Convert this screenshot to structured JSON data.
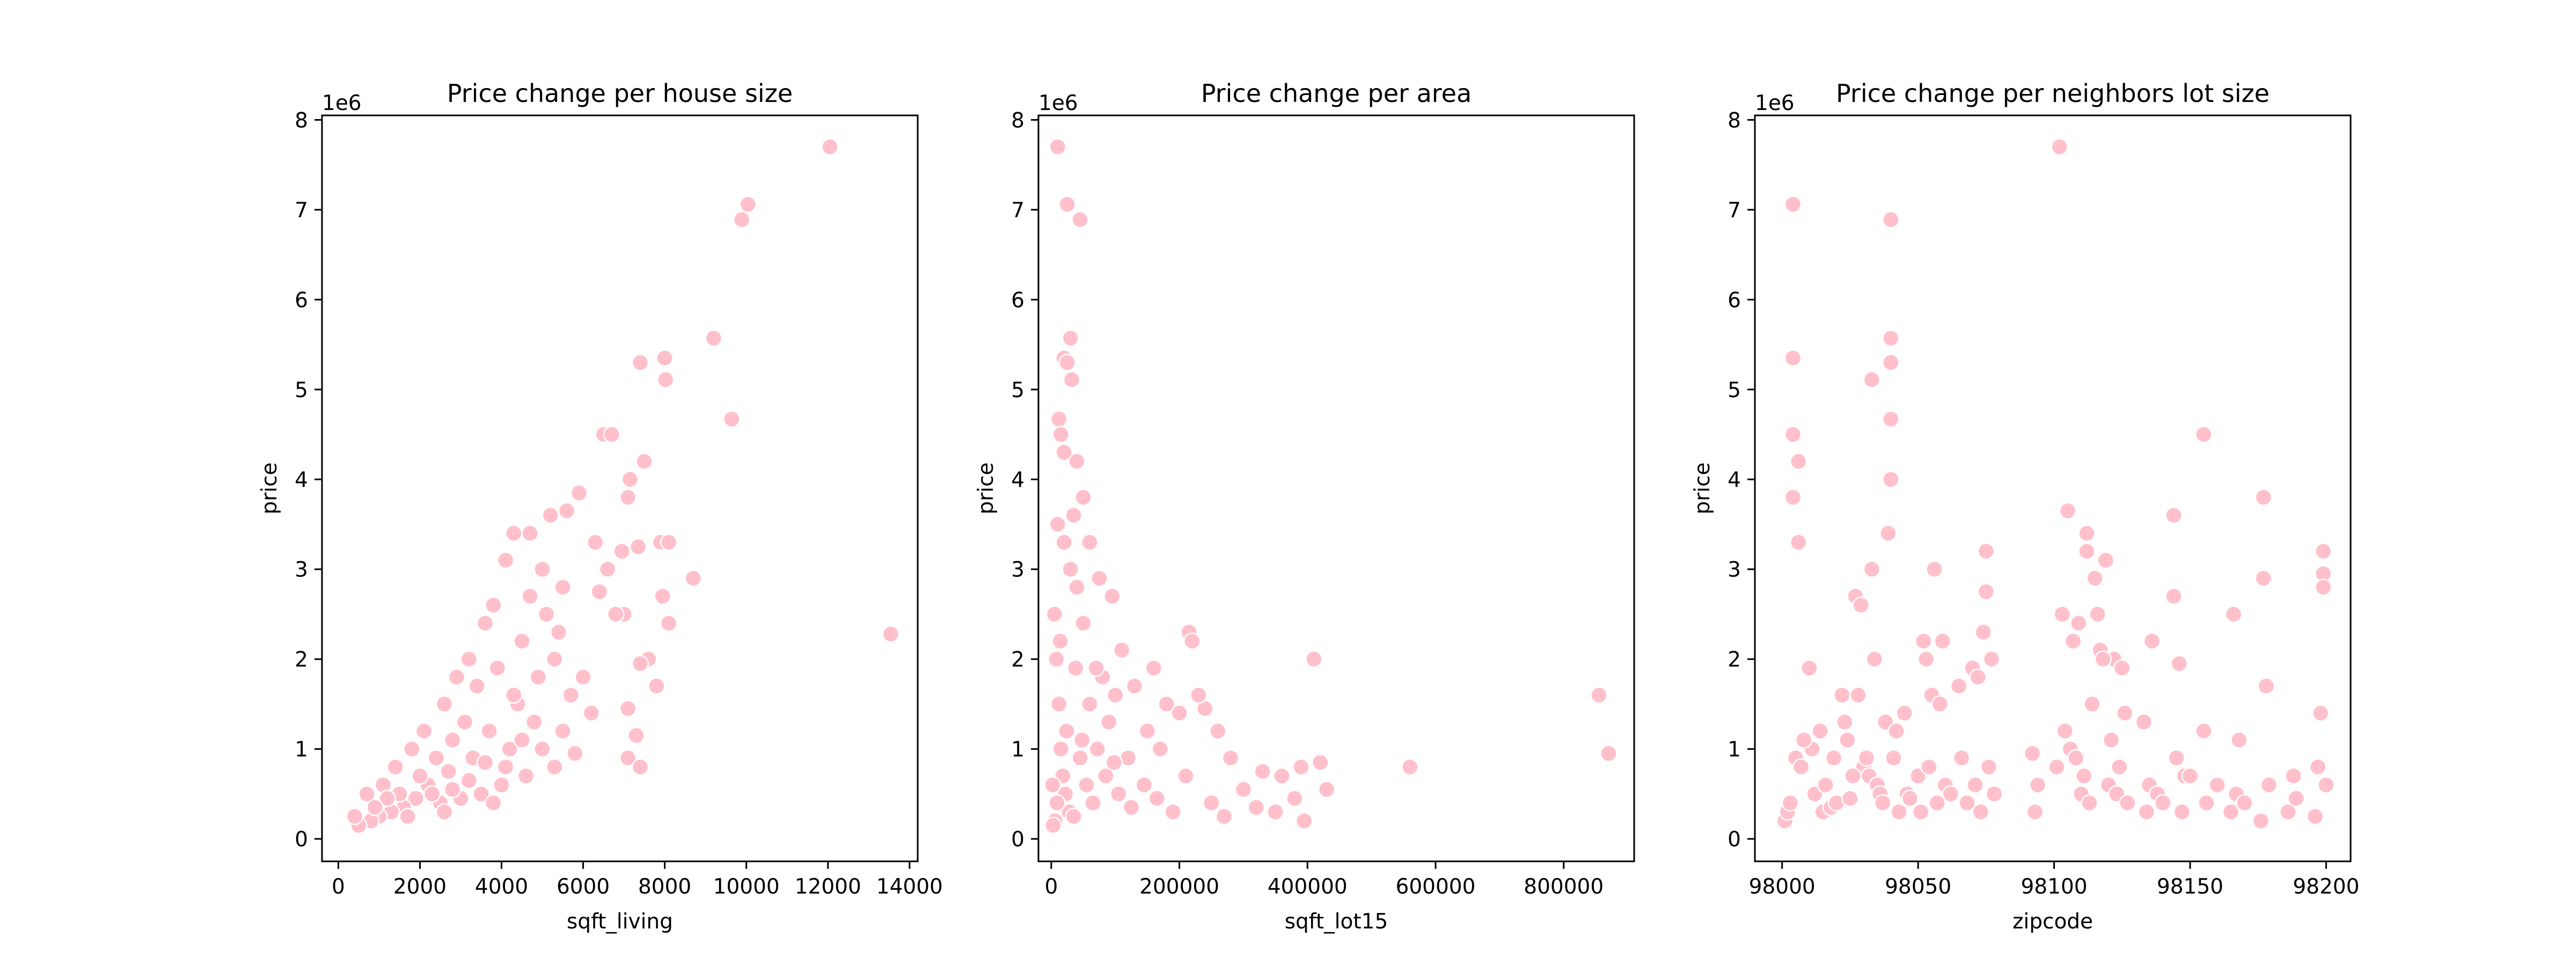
{
  "chart_data": [
    {
      "type": "scatter",
      "title": "Price change per house size",
      "xlabel": "sqft_living",
      "ylabel": "price",
      "y_offset_label": "1e6",
      "xlim": [
        -400,
        14200
      ],
      "ylim": [
        -0.25,
        8.05
      ],
      "x_ticks": [
        0,
        2000,
        4000,
        6000,
        8000,
        10000,
        12000,
        14000
      ],
      "x_tick_labels": [
        "0",
        "2000",
        "4000",
        "6000",
        "8000",
        "10000",
        "12000",
        "14000"
      ],
      "y_ticks": [
        0,
        1,
        2,
        3,
        4,
        5,
        6,
        7,
        8
      ],
      "y_tick_labels": [
        "0",
        "1",
        "2",
        "3",
        "4",
        "5",
        "6",
        "7",
        "8"
      ],
      "marker_color": "#ffc0cb",
      "edge_color": "#ffffff",
      "grid": false,
      "points": [
        [
          12050,
          7.7
        ],
        [
          10040,
          7.06
        ],
        [
          9890,
          6.89
        ],
        [
          9200,
          5.57
        ],
        [
          9640,
          4.67
        ],
        [
          13540,
          2.28
        ],
        [
          8000,
          5.35
        ],
        [
          7400,
          5.3
        ],
        [
          8020,
          5.11
        ],
        [
          6500,
          4.5
        ],
        [
          6700,
          4.5
        ],
        [
          7500,
          4.2
        ],
        [
          7150,
          4.0
        ],
        [
          7100,
          3.8
        ],
        [
          5900,
          3.85
        ],
        [
          5600,
          3.65
        ],
        [
          7900,
          3.3
        ],
        [
          8100,
          3.3
        ],
        [
          7350,
          3.25
        ],
        [
          6950,
          3.2
        ],
        [
          6300,
          3.3
        ],
        [
          6600,
          3.0
        ],
        [
          8700,
          2.9
        ],
        [
          7000,
          2.5
        ],
        [
          6800,
          2.5
        ],
        [
          6400,
          2.75
        ],
        [
          7950,
          2.7
        ],
        [
          8100,
          2.4
        ],
        [
          7600,
          2.0
        ],
        [
          7400,
          1.95
        ],
        [
          7800,
          1.7
        ],
        [
          7100,
          1.45
        ],
        [
          7300,
          1.15
        ],
        [
          7100,
          0.9
        ],
        [
          7400,
          0.8
        ],
        [
          5700,
          1.6
        ],
        [
          5500,
          2.8
        ],
        [
          5000,
          3.0
        ],
        [
          4700,
          3.4
        ],
        [
          4300,
          3.4
        ],
        [
          5200,
          3.6
        ],
        [
          4100,
          3.1
        ],
        [
          3800,
          2.6
        ],
        [
          3600,
          2.4
        ],
        [
          4500,
          2.2
        ],
        [
          5100,
          2.5
        ],
        [
          5300,
          2.0
        ],
        [
          4900,
          1.8
        ],
        [
          4400,
          1.5
        ],
        [
          3900,
          1.9
        ],
        [
          3400,
          1.7
        ],
        [
          3100,
          1.3
        ],
        [
          2800,
          1.1
        ],
        [
          2600,
          1.5
        ],
        [
          3200,
          2.0
        ],
        [
          2900,
          1.8
        ],
        [
          3700,
          1.2
        ],
        [
          4200,
          1.0
        ],
        [
          4800,
          1.3
        ],
        [
          5500,
          1.2
        ],
        [
          6000,
          1.8
        ],
        [
          6200,
          1.4
        ],
        [
          5800,
          0.95
        ],
        [
          5300,
          0.8
        ],
        [
          4600,
          0.7
        ],
        [
          4000,
          0.6
        ],
        [
          3500,
          0.5
        ],
        [
          3000,
          0.45
        ],
        [
          2500,
          0.4
        ],
        [
          2200,
          0.6
        ],
        [
          1900,
          0.45
        ],
        [
          1600,
          0.35
        ],
        [
          1300,
          0.3
        ],
        [
          1000,
          0.25
        ],
        [
          800,
          0.2
        ],
        [
          500,
          0.15
        ],
        [
          400,
          0.25
        ],
        [
          700,
          0.5
        ],
        [
          1100,
          0.6
        ],
        [
          1400,
          0.8
        ],
        [
          1800,
          1.0
        ],
        [
          2100,
          1.2
        ],
        [
          2400,
          0.9
        ],
        [
          2700,
          0.75
        ],
        [
          3300,
          0.9
        ],
        [
          3600,
          0.85
        ],
        [
          4100,
          0.8
        ],
        [
          4500,
          1.1
        ],
        [
          5000,
          1.0
        ],
        [
          1500,
          0.5
        ],
        [
          2000,
          0.7
        ],
        [
          2300,
          0.5
        ],
        [
          2800,
          0.55
        ],
        [
          3200,
          0.65
        ],
        [
          1200,
          0.45
        ],
        [
          900,
          0.35
        ],
        [
          1700,
          0.25
        ],
        [
          2600,
          0.3
        ],
        [
          3800,
          0.4
        ],
        [
          4300,
          1.6
        ],
        [
          4700,
          2.7
        ],
        [
          5400,
          2.3
        ]
      ]
    },
    {
      "type": "scatter",
      "title": "Price change per area",
      "xlabel": "sqft_lot15",
      "ylabel": "price",
      "y_offset_label": "1e6",
      "xlim": [
        -20000,
        910000
      ],
      "ylim": [
        -0.25,
        8.05
      ],
      "x_ticks": [
        0,
        200000,
        400000,
        600000,
        800000
      ],
      "x_tick_labels": [
        "0",
        "200000",
        "400000",
        "600000",
        "800000"
      ],
      "y_ticks": [
        0,
        1,
        2,
        3,
        4,
        5,
        6,
        7,
        8
      ],
      "y_tick_labels": [
        "0",
        "1",
        "2",
        "3",
        "4",
        "5",
        "6",
        "7",
        "8"
      ],
      "marker_color": "#ffc0cb",
      "edge_color": "#ffffff",
      "grid": false,
      "points": [
        [
          10000,
          7.7
        ],
        [
          25000,
          7.06
        ],
        [
          45000,
          6.89
        ],
        [
          30000,
          5.57
        ],
        [
          20000,
          5.35
        ],
        [
          25000,
          5.3
        ],
        [
          32000,
          5.11
        ],
        [
          12000,
          4.67
        ],
        [
          15000,
          4.5
        ],
        [
          20000,
          4.3
        ],
        [
          40000,
          4.2
        ],
        [
          50000,
          3.8
        ],
        [
          35000,
          3.6
        ],
        [
          60000,
          3.3
        ],
        [
          75000,
          2.9
        ],
        [
          95000,
          2.7
        ],
        [
          110000,
          2.1
        ],
        [
          160000,
          1.9
        ],
        [
          215000,
          2.3
        ],
        [
          220000,
          2.2
        ],
        [
          410000,
          2.0
        ],
        [
          855000,
          1.6
        ],
        [
          870000,
          0.95
        ],
        [
          560000,
          0.8
        ],
        [
          430000,
          0.55
        ],
        [
          420000,
          0.85
        ],
        [
          390000,
          0.8
        ],
        [
          360000,
          0.7
        ],
        [
          330000,
          0.75
        ],
        [
          300000,
          0.55
        ],
        [
          280000,
          0.9
        ],
        [
          260000,
          1.2
        ],
        [
          240000,
          1.45
        ],
        [
          230000,
          1.6
        ],
        [
          200000,
          1.4
        ],
        [
          180000,
          1.5
        ],
        [
          170000,
          1.0
        ],
        [
          150000,
          1.2
        ],
        [
          130000,
          1.7
        ],
        [
          120000,
          0.9
        ],
        [
          100000,
          1.6
        ],
        [
          90000,
          1.3
        ],
        [
          80000,
          1.8
        ],
        [
          70000,
          1.9
        ],
        [
          60000,
          1.5
        ],
        [
          50000,
          2.4
        ],
        [
          40000,
          2.8
        ],
        [
          30000,
          3.0
        ],
        [
          20000,
          3.3
        ],
        [
          10000,
          3.5
        ],
        [
          5000,
          2.5
        ],
        [
          8000,
          2.0
        ],
        [
          12000,
          1.5
        ],
        [
          15000,
          1.0
        ],
        [
          18000,
          0.7
        ],
        [
          22000,
          0.5
        ],
        [
          28000,
          0.3
        ],
        [
          35000,
          0.25
        ],
        [
          6000,
          0.2
        ],
        [
          3000,
          0.15
        ],
        [
          2000,
          0.6
        ],
        [
          9000,
          0.4
        ],
        [
          45000,
          0.9
        ],
        [
          55000,
          0.6
        ],
        [
          65000,
          0.4
        ],
        [
          85000,
          0.7
        ],
        [
          105000,
          0.5
        ],
        [
          125000,
          0.35
        ],
        [
          145000,
          0.6
        ],
        [
          165000,
          0.45
        ],
        [
          190000,
          0.3
        ],
        [
          210000,
          0.7
        ],
        [
          250000,
          0.4
        ],
        [
          270000,
          0.25
        ],
        [
          320000,
          0.35
        ],
        [
          350000,
          0.3
        ],
        [
          380000,
          0.45
        ],
        [
          395000,
          0.2
        ],
        [
          14000,
          2.2
        ],
        [
          24000,
          1.2
        ],
        [
          38000,
          1.9
        ],
        [
          48000,
          1.1
        ],
        [
          72000,
          1.0
        ],
        [
          98000,
          0.85
        ]
      ]
    },
    {
      "type": "scatter",
      "title": "Price change per neighbors lot size",
      "xlabel": "zipcode",
      "ylabel": "price",
      "y_offset_label": "1e6",
      "xlim": [
        97990,
        98209
      ],
      "ylim": [
        -0.25,
        8.05
      ],
      "x_ticks": [
        98000,
        98050,
        98100,
        98150,
        98200
      ],
      "x_tick_labels": [
        "98000",
        "98050",
        "98100",
        "98150",
        "98200"
      ],
      "y_ticks": [
        0,
        1,
        2,
        3,
        4,
        5,
        6,
        7,
        8
      ],
      "y_tick_labels": [
        "0",
        "1",
        "2",
        "3",
        "4",
        "5",
        "6",
        "7",
        "8"
      ],
      "marker_color": "#ffc0cb",
      "edge_color": "#ffffff",
      "grid": false,
      "points": [
        [
          98102,
          7.7
        ],
        [
          98004,
          7.06
        ],
        [
          98040,
          6.89
        ],
        [
          98040,
          5.57
        ],
        [
          98004,
          5.35
        ],
        [
          98040,
          5.3
        ],
        [
          98033,
          5.11
        ],
        [
          98040,
          4.67
        ],
        [
          98155,
          4.5
        ],
        [
          98004,
          4.5
        ],
        [
          98006,
          4.2
        ],
        [
          98040,
          4.0
        ],
        [
          98177,
          3.8
        ],
        [
          98004,
          3.8
        ],
        [
          98105,
          3.65
        ],
        [
          98144,
          3.6
        ],
        [
          98112,
          3.4
        ],
        [
          98039,
          3.4
        ],
        [
          98006,
          3.3
        ],
        [
          98075,
          3.2
        ],
        [
          98199,
          3.2
        ],
        [
          98112,
          3.2
        ],
        [
          98119,
          3.1
        ],
        [
          98033,
          3.0
        ],
        [
          98056,
          3.0
        ],
        [
          98199,
          2.95
        ],
        [
          98177,
          2.9
        ],
        [
          98199,
          2.8
        ],
        [
          98075,
          2.75
        ],
        [
          98144,
          2.7
        ],
        [
          98027,
          2.7
        ],
        [
          98029,
          2.6
        ],
        [
          98059,
          2.2
        ],
        [
          98116,
          2.5
        ],
        [
          98136,
          2.2
        ],
        [
          98166,
          2.5
        ],
        [
          98103,
          2.5
        ],
        [
          98107,
          2.2
        ],
        [
          98117,
          2.1
        ],
        [
          98122,
          2.0
        ],
        [
          98125,
          1.9
        ],
        [
          98146,
          1.95
        ],
        [
          98155,
          1.2
        ],
        [
          98168,
          1.1
        ],
        [
          98178,
          1.7
        ],
        [
          98188,
          0.7
        ],
        [
          98198,
          1.4
        ],
        [
          98010,
          1.9
        ],
        [
          98011,
          1.0
        ],
        [
          98014,
          1.2
        ],
        [
          98019,
          0.9
        ],
        [
          98022,
          1.6
        ],
        [
          98023,
          1.3
        ],
        [
          98024,
          1.1
        ],
        [
          98028,
          1.6
        ],
        [
          98030,
          0.8
        ],
        [
          98031,
          0.9
        ],
        [
          98032,
          0.7
        ],
        [
          98034,
          2.0
        ],
        [
          98038,
          1.3
        ],
        [
          98042,
          1.2
        ],
        [
          98045,
          1.4
        ],
        [
          98052,
          2.2
        ],
        [
          98053,
          2.0
        ],
        [
          98055,
          1.6
        ],
        [
          98058,
          1.5
        ],
        [
          98065,
          1.7
        ],
        [
          98070,
          1.9
        ],
        [
          98072,
          1.8
        ],
        [
          98074,
          2.3
        ],
        [
          98077,
          2.0
        ],
        [
          98092,
          0.95
        ],
        [
          98106,
          1.0
        ],
        [
          98108,
          0.9
        ],
        [
          98109,
          2.4
        ],
        [
          98115,
          2.9
        ],
        [
          98118,
          2.0
        ],
        [
          98126,
          1.4
        ],
        [
          98133,
          1.3
        ],
        [
          98148,
          0.7
        ],
        [
          98001,
          0.2
        ],
        [
          98002,
          0.3
        ],
        [
          98003,
          0.4
        ],
        [
          98005,
          0.9
        ],
        [
          98007,
          0.8
        ],
        [
          98008,
          1.1
        ],
        [
          98012,
          0.5
        ],
        [
          98015,
          0.3
        ],
        [
          98016,
          0.6
        ],
        [
          98018,
          0.35
        ],
        [
          98020,
          0.4
        ],
        [
          98025,
          0.45
        ],
        [
          98026,
          0.7
        ],
        [
          98035,
          0.6
        ],
        [
          98036,
          0.5
        ],
        [
          98037,
          0.4
        ],
        [
          98041,
          0.9
        ],
        [
          98043,
          0.3
        ],
        [
          98046,
          0.5
        ],
        [
          98047,
          0.45
        ],
        [
          98050,
          0.7
        ],
        [
          98051,
          0.3
        ],
        [
          98054,
          0.8
        ],
        [
          98057,
          0.4
        ],
        [
          98060,
          0.6
        ],
        [
          98062,
          0.5
        ],
        [
          98066,
          0.9
        ],
        [
          98068,
          0.4
        ],
        [
          98071,
          0.6
        ],
        [
          98073,
          0.3
        ],
        [
          98076,
          0.8
        ],
        [
          98078,
          0.5
        ],
        [
          98093,
          0.3
        ],
        [
          98094,
          0.6
        ],
        [
          98101,
          0.8
        ],
        [
          98104,
          1.2
        ],
        [
          98110,
          0.5
        ],
        [
          98111,
          0.7
        ],
        [
          98113,
          0.4
        ],
        [
          98114,
          1.5
        ],
        [
          98120,
          0.6
        ],
        [
          98121,
          1.1
        ],
        [
          98123,
          0.5
        ],
        [
          98124,
          0.8
        ],
        [
          98127,
          0.4
        ],
        [
          98134,
          0.3
        ],
        [
          98135,
          0.6
        ],
        [
          98138,
          0.5
        ],
        [
          98140,
          0.4
        ],
        [
          98145,
          0.9
        ],
        [
          98147,
          0.3
        ],
        [
          98150,
          0.7
        ],
        [
          98156,
          0.4
        ],
        [
          98160,
          0.6
        ],
        [
          98165,
          0.3
        ],
        [
          98167,
          0.5
        ],
        [
          98170,
          0.4
        ],
        [
          98176,
          0.2
        ],
        [
          98179,
          0.6
        ],
        [
          98186,
          0.3
        ],
        [
          98189,
          0.45
        ],
        [
          98196,
          0.25
        ],
        [
          98197,
          0.8
        ],
        [
          98200,
          0.6
        ]
      ]
    }
  ]
}
